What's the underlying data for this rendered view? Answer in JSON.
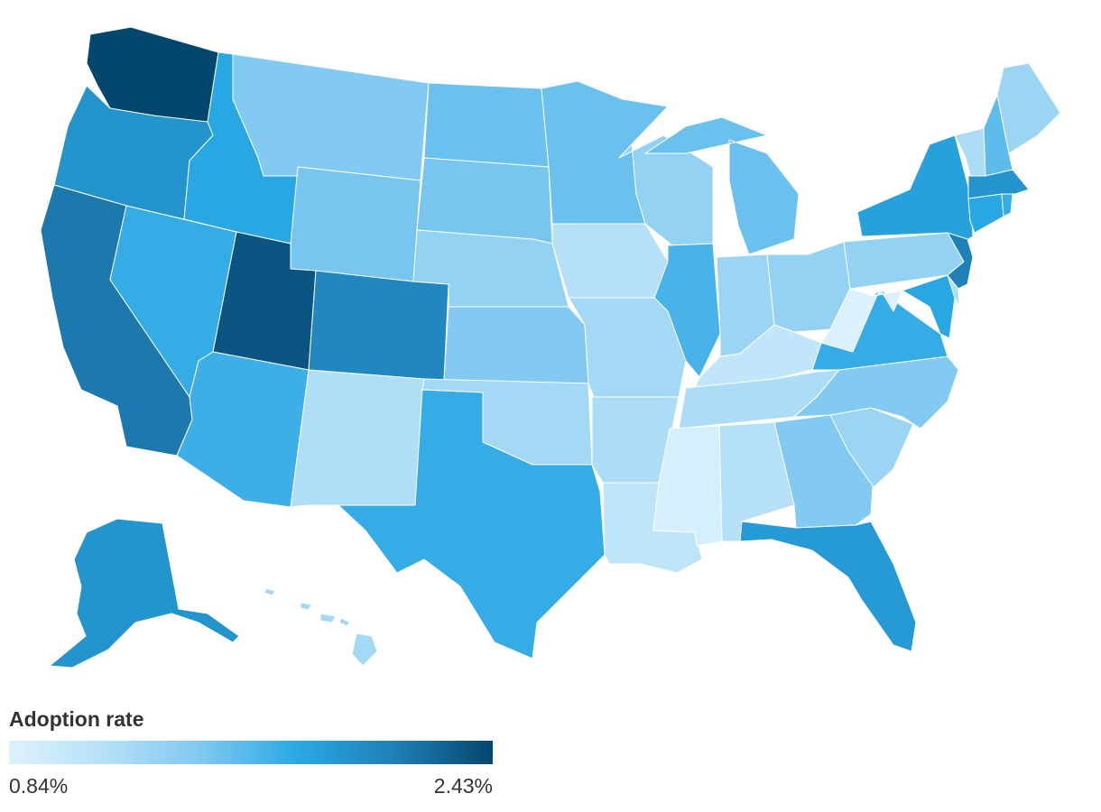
{
  "legend": {
    "title": "Adoption rate",
    "min_label": "0.84%",
    "max_label": "2.43%",
    "min_value": 0.84,
    "max_value": 2.43,
    "colors": [
      "#def2fd",
      "#b4e0f7",
      "#7ec8f0",
      "#29a8e3",
      "#1f7fb5",
      "#03476f"
    ]
  },
  "states": {
    "WA": 2.43,
    "OR": 1.95,
    "CA": 2.15,
    "NV": 1.75,
    "ID": 1.8,
    "MT": 1.45,
    "WY": 1.5,
    "UT": 2.35,
    "AZ": 1.72,
    "CO": 2.05,
    "NM": 1.18,
    "ND": 1.55,
    "SD": 1.5,
    "NE": 1.35,
    "KS": 1.45,
    "OK": 1.25,
    "TX": 1.75,
    "MN": 1.55,
    "IA": 1.15,
    "MO": 1.25,
    "AR": 1.2,
    "LA": 1.08,
    "WI": 1.35,
    "IL": 1.68,
    "MS": 0.9,
    "AL": 1.15,
    "TN": 1.2,
    "KY": 1.05,
    "IN": 1.3,
    "OH": 1.35,
    "MI": 1.55,
    "GA": 1.45,
    "FL": 1.9,
    "SC": 1.3,
    "NC": 1.45,
    "VA": 1.75,
    "WV": 0.86,
    "PA": 1.35,
    "NY": 1.85,
    "VT": 1.2,
    "NH": 1.6,
    "ME": 1.3,
    "MA": 1.95,
    "RI": 1.75,
    "CT": 1.8,
    "NJ": 2.1,
    "DE": 1.2,
    "MD": 1.8,
    "AK": 1.95,
    "HI": 1.25
  }
}
